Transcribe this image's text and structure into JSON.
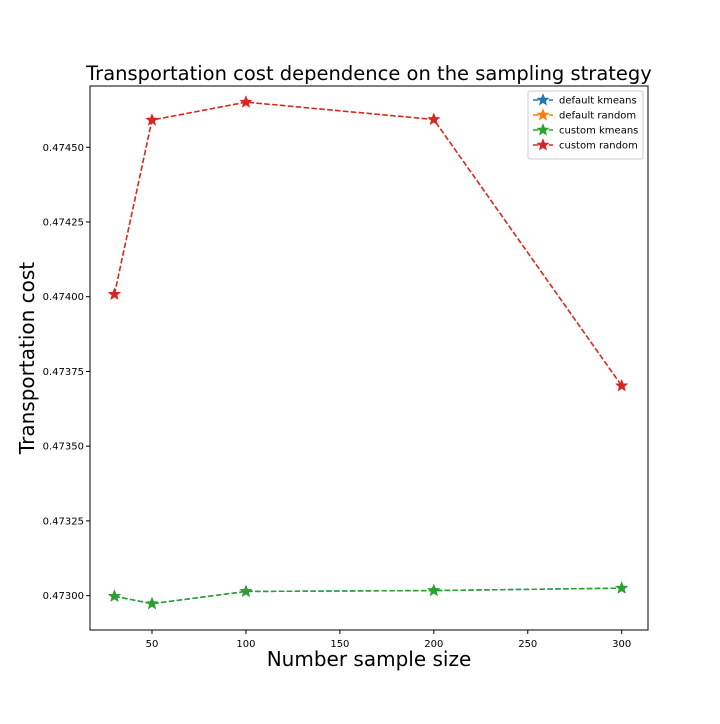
{
  "chart_data": {
    "type": "line",
    "title": "Transportation cost dependence on the sampling strategy",
    "xlabel": "Number sample size",
    "ylabel": "Transportation cost",
    "x": [
      30,
      50,
      100,
      200,
      300
    ],
    "xlim": [
      17,
      314
    ],
    "ylim": [
      0.472885,
      0.474705
    ],
    "xticks": [
      50,
      100,
      150,
      200,
      250,
      300
    ],
    "yticks": [
      0.473,
      0.47325,
      0.4735,
      0.47375,
      0.474,
      0.47425,
      0.4745
    ],
    "ytick_labels": [
      "0.47300",
      "0.47325",
      "0.47350",
      "0.47375",
      "0.47400",
      "0.47425",
      "0.47450"
    ],
    "grid": false,
    "legend_position": "top-right",
    "marker": "star",
    "line_style": "dashed",
    "series": [
      {
        "name": "default kmeans",
        "color": "#1f77b4",
        "values": [
          0.472998,
          0.472973,
          0.473014,
          0.473017,
          0.473025
        ]
      },
      {
        "name": "default random",
        "color": "#ff7f0e",
        "values": [
          0.474008,
          0.474591,
          0.474651,
          0.474593,
          0.473702
        ]
      },
      {
        "name": "custom kmeans",
        "color": "#2ca02c",
        "values": [
          0.472998,
          0.472973,
          0.473014,
          0.473017,
          0.473025
        ]
      },
      {
        "name": "custom random",
        "color": "#d62728",
        "values": [
          0.474008,
          0.474591,
          0.474651,
          0.474593,
          0.473702
        ]
      }
    ]
  }
}
